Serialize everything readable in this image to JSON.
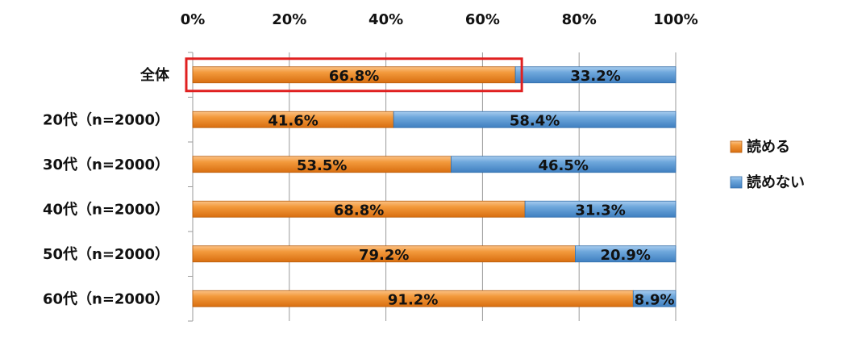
{
  "chart_data": {
    "type": "bar",
    "orientation": "horizontal",
    "stacked": "percent",
    "categories": [
      "全体",
      "20代（n=2000）",
      "30代（n=2000）",
      "40代（n=2000）",
      "50代（n=2000）",
      "60代（n=2000）"
    ],
    "series": [
      {
        "name": "読める",
        "values": [
          66.8,
          41.6,
          53.5,
          68.8,
          79.2,
          91.2
        ],
        "labels": [
          "66.8%",
          "41.6%",
          "53.5%",
          "68.8%",
          "79.2%",
          "91.2%"
        ],
        "color": "#F08A24"
      },
      {
        "name": "読めない",
        "values": [
          33.2,
          58.4,
          46.5,
          31.3,
          20.9,
          8.9
        ],
        "labels": [
          "33.2%",
          "58.4%",
          "46.5%",
          "31.3%",
          "20.9%",
          "8.9%"
        ],
        "color": "#5B9BD5"
      }
    ],
    "xaxis": {
      "ticks": [
        "0%",
        "20%",
        "40%",
        "60%",
        "80%",
        "100%"
      ],
      "range": [
        0,
        100
      ],
      "position": "top"
    },
    "grid": true,
    "legend": "right",
    "highlight_category": "全体",
    "highlight_color": "#E02020"
  }
}
